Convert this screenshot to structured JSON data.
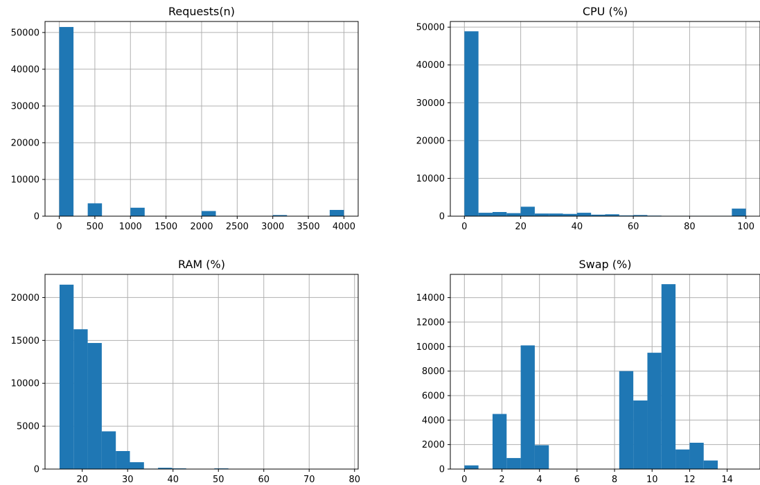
{
  "chart_data": [
    {
      "type": "bar",
      "title": "Requests(n)",
      "xlabel": "",
      "ylabel": "",
      "xlim": [
        -200,
        4200
      ],
      "ylim": [
        0,
        53000
      ],
      "xticks": [
        0,
        500,
        1000,
        1500,
        2000,
        2500,
        3000,
        3500,
        4000
      ],
      "xtick_labels": [
        "0",
        "500",
        "1000",
        "1500",
        "2000",
        "2500",
        "3000",
        "3500",
        "4000"
      ],
      "yticks": [
        0,
        10000,
        20000,
        30000,
        40000,
        50000
      ],
      "ytick_labels": [
        "0",
        "10000",
        "20000",
        "30000",
        "40000",
        "50000"
      ],
      "grid": true,
      "color": "#1f77b4",
      "bins": [
        {
          "x0": 0,
          "x1": 200,
          "count": 51500
        },
        {
          "x0": 400,
          "x1": 600,
          "count": 3500
        },
        {
          "x0": 1000,
          "x1": 1200,
          "count": 2300
        },
        {
          "x0": 2000,
          "x1": 2200,
          "count": 1400
        },
        {
          "x0": 3000,
          "x1": 3200,
          "count": 300
        },
        {
          "x0": 3800,
          "x1": 4000,
          "count": 1700
        }
      ]
    },
    {
      "type": "bar",
      "title": "CPU (%)",
      "xlabel": "",
      "ylabel": "",
      "xlim": [
        -5,
        105
      ],
      "ylim": [
        0,
        51500
      ],
      "xticks": [
        0,
        20,
        40,
        60,
        80,
        100
      ],
      "xtick_labels": [
        "0",
        "20",
        "40",
        "60",
        "80",
        "100"
      ],
      "yticks": [
        0,
        10000,
        20000,
        30000,
        40000,
        50000
      ],
      "ytick_labels": [
        "0",
        "10000",
        "20000",
        "30000",
        "40000",
        "50000"
      ],
      "grid": true,
      "color": "#1f77b4",
      "bins": [
        {
          "x0": 0,
          "x1": 5,
          "count": 48900
        },
        {
          "x0": 5,
          "x1": 10,
          "count": 900
        },
        {
          "x0": 10,
          "x1": 15,
          "count": 1100
        },
        {
          "x0": 15,
          "x1": 20,
          "count": 800
        },
        {
          "x0": 20,
          "x1": 25,
          "count": 2500
        },
        {
          "x0": 25,
          "x1": 30,
          "count": 700
        },
        {
          "x0": 30,
          "x1": 35,
          "count": 700
        },
        {
          "x0": 35,
          "x1": 40,
          "count": 600
        },
        {
          "x0": 40,
          "x1": 45,
          "count": 900
        },
        {
          "x0": 45,
          "x1": 50,
          "count": 400
        },
        {
          "x0": 50,
          "x1": 55,
          "count": 500
        },
        {
          "x0": 55,
          "x1": 60,
          "count": 200
        },
        {
          "x0": 60,
          "x1": 65,
          "count": 300
        },
        {
          "x0": 65,
          "x1": 70,
          "count": 150
        },
        {
          "x0": 70,
          "x1": 75,
          "count": 100
        },
        {
          "x0": 75,
          "x1": 80,
          "count": 100
        },
        {
          "x0": 80,
          "x1": 85,
          "count": 100
        },
        {
          "x0": 85,
          "x1": 90,
          "count": 100
        },
        {
          "x0": 90,
          "x1": 95,
          "count": 100
        },
        {
          "x0": 95,
          "x1": 100,
          "count": 2000
        }
      ]
    },
    {
      "type": "bar",
      "title": "RAM (%)",
      "xlabel": "",
      "ylabel": "",
      "xlim": [
        11.8,
        80.8
      ],
      "ylim": [
        0,
        22700
      ],
      "xticks": [
        20,
        30,
        40,
        50,
        60,
        70,
        80
      ],
      "xtick_labels": [
        "20",
        "30",
        "40",
        "50",
        "60",
        "70",
        "80"
      ],
      "yticks": [
        0,
        5000,
        10000,
        15000,
        20000
      ],
      "ytick_labels": [
        "0",
        "5000",
        "10000",
        "15000",
        "20000"
      ],
      "grid": true,
      "color": "#1f77b4",
      "bins": [
        {
          "x0": 15,
          "x1": 18.1,
          "count": 21500
        },
        {
          "x0": 18.1,
          "x1": 21.2,
          "count": 16300
        },
        {
          "x0": 21.2,
          "x1": 24.3,
          "count": 14700
        },
        {
          "x0": 24.3,
          "x1": 27.4,
          "count": 4400
        },
        {
          "x0": 27.4,
          "x1": 30.5,
          "count": 2100
        },
        {
          "x0": 30.5,
          "x1": 33.6,
          "count": 800
        },
        {
          "x0": 33.6,
          "x1": 36.7,
          "count": 50
        },
        {
          "x0": 36.7,
          "x1": 39.8,
          "count": 150
        },
        {
          "x0": 39.8,
          "x1": 42.9,
          "count": 80
        },
        {
          "x0": 42.9,
          "x1": 46.0,
          "count": 30
        },
        {
          "x0": 46.0,
          "x1": 49.1,
          "count": 20
        },
        {
          "x0": 49.1,
          "x1": 52.2,
          "count": 80
        },
        {
          "x0": 52.2,
          "x1": 55.3,
          "count": 40
        },
        {
          "x0": 55.3,
          "x1": 58.4,
          "count": 20
        },
        {
          "x0": 58.4,
          "x1": 61.5,
          "count": 10
        },
        {
          "x0": 61.5,
          "x1": 64.6,
          "count": 10
        },
        {
          "x0": 64.6,
          "x1": 67.7,
          "count": 10
        },
        {
          "x0": 67.7,
          "x1": 70.8,
          "count": 10
        },
        {
          "x0": 70.8,
          "x1": 73.9,
          "count": 10
        },
        {
          "x0": 73.9,
          "x1": 77.6,
          "count": 10
        }
      ]
    },
    {
      "type": "bar",
      "title": "Swap (%)",
      "xlabel": "",
      "ylabel": "",
      "xlim": [
        -0.75,
        15.75
      ],
      "ylim": [
        0,
        15900
      ],
      "xticks": [
        0,
        2,
        4,
        6,
        8,
        10,
        12,
        14
      ],
      "xtick_labels": [
        "0",
        "2",
        "4",
        "6",
        "8",
        "10",
        "12",
        "14"
      ],
      "yticks": [
        0,
        2000,
        4000,
        6000,
        8000,
        10000,
        12000,
        14000
      ],
      "ytick_labels": [
        "0",
        "2000",
        "4000",
        "6000",
        "8000",
        "10000",
        "12000",
        "14000"
      ],
      "grid": true,
      "color": "#1f77b4",
      "bins": [
        {
          "x0": 0,
          "x1": 0.75,
          "count": 300
        },
        {
          "x0": 1.5,
          "x1": 2.25,
          "count": 4500
        },
        {
          "x0": 2.25,
          "x1": 3.0,
          "count": 900
        },
        {
          "x0": 3.0,
          "x1": 3.75,
          "count": 10100
        },
        {
          "x0": 3.75,
          "x1": 4.5,
          "count": 1950
        },
        {
          "x0": 8.25,
          "x1": 9.0,
          "count": 8000
        },
        {
          "x0": 9.0,
          "x1": 9.75,
          "count": 5600
        },
        {
          "x0": 9.75,
          "x1": 10.5,
          "count": 9500
        },
        {
          "x0": 10.5,
          "x1": 11.25,
          "count": 15100
        },
        {
          "x0": 11.25,
          "x1": 12.0,
          "count": 1600
        },
        {
          "x0": 12.0,
          "x1": 12.75,
          "count": 2150
        },
        {
          "x0": 12.75,
          "x1": 13.5,
          "count": 700
        }
      ]
    }
  ]
}
